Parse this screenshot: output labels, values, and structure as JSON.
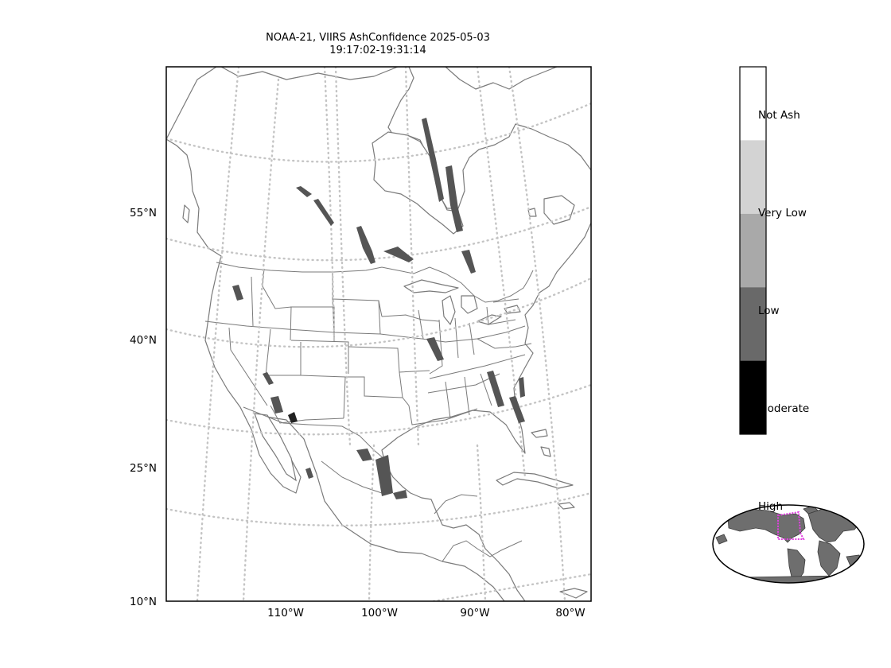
{
  "header": {
    "title_line1": "NOAA-21, VIIRS AshConfidence 2025-05-03",
    "title_line2": "19:17:02-19:31:14"
  },
  "axes": {
    "lat_ticks": [
      "55°N",
      "40°N",
      "25°N",
      "10°N"
    ],
    "lon_ticks": [
      "110°W",
      "100°W",
      "90°W",
      "80°W"
    ]
  },
  "legend": {
    "categories": [
      {
        "label": "Not Ash",
        "color": "#ffffff"
      },
      {
        "label": "Very Low",
        "color": "#d3d3d3"
      },
      {
        "label": "Low",
        "color": "#a9a9a9"
      },
      {
        "label": "Moderate",
        "color": "#696969"
      },
      {
        "label": "High",
        "color": "#000000"
      }
    ]
  },
  "colors": {
    "coastline": "#7a7a7a",
    "gridline": "#c4c4c4",
    "inset_extent_box": "#e040e0"
  },
  "icons": {
    "inset": "globe-locator-icon"
  }
}
